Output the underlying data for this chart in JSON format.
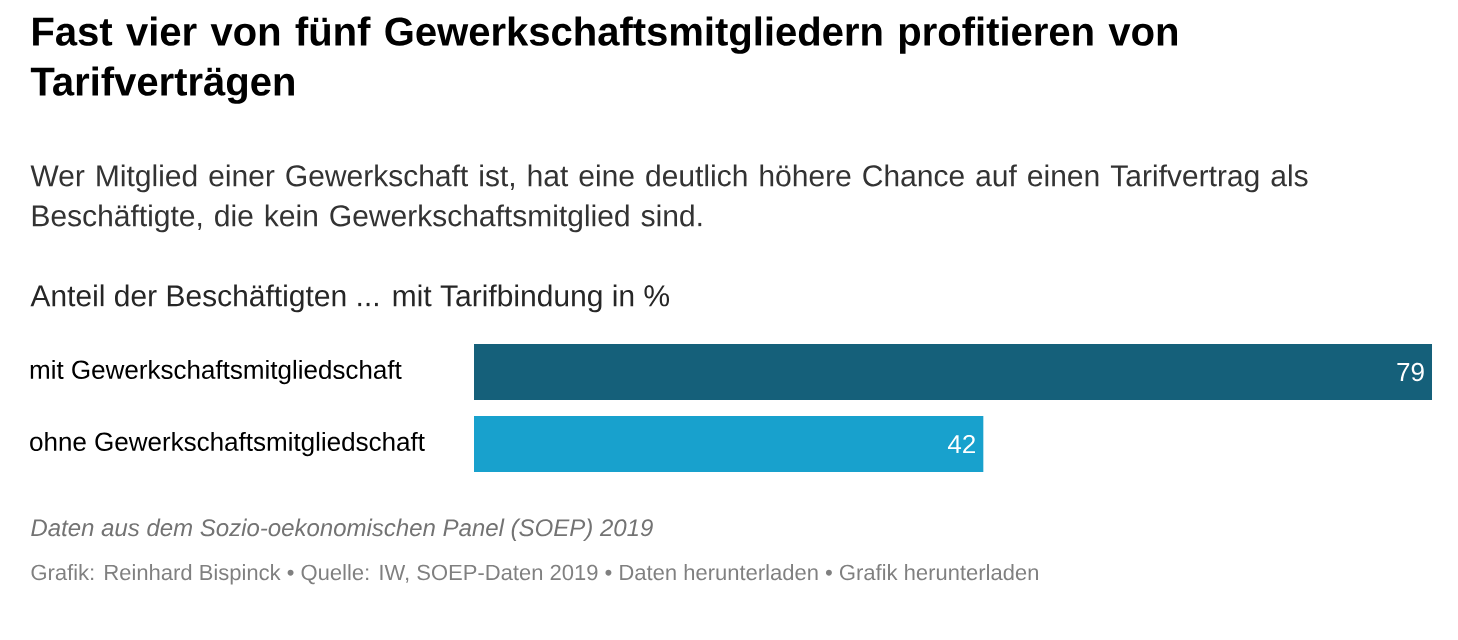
{
  "chart_data": {
    "type": "bar",
    "orientation": "horizontal",
    "title": "Fast vier von fünf Gewerkschaftsmitgliedern profitieren von Tarifverträgen",
    "subtitle": "Wer Mitglied einer Gewerkschaft ist, hat eine deutlich höhere Chance auf einen Tarifvertrag als Beschäftigte, die kein Gewerkschaftsmitglied sind.",
    "xlabel": "Anteil der Beschäftigten ... mit Tarifbindung in %",
    "categories": [
      "mit Gewerkschaftsmitgliedschaft",
      "ohne Gewerkschaftsmitgliedschaft"
    ],
    "values": [
      79,
      42
    ],
    "colors": [
      "#15607a",
      "#18a1cd"
    ],
    "data_labels": true,
    "annotations": [
      "*Daten aus dem Sozio-oekonomischen Panel (SOEP) 2019*",
      "Grafik: Reinhard Bispinck • Quelle: IW, SOEP-Daten 2019 • Daten herunterladen • Grafik herunterladen"
    ]
  }
}
